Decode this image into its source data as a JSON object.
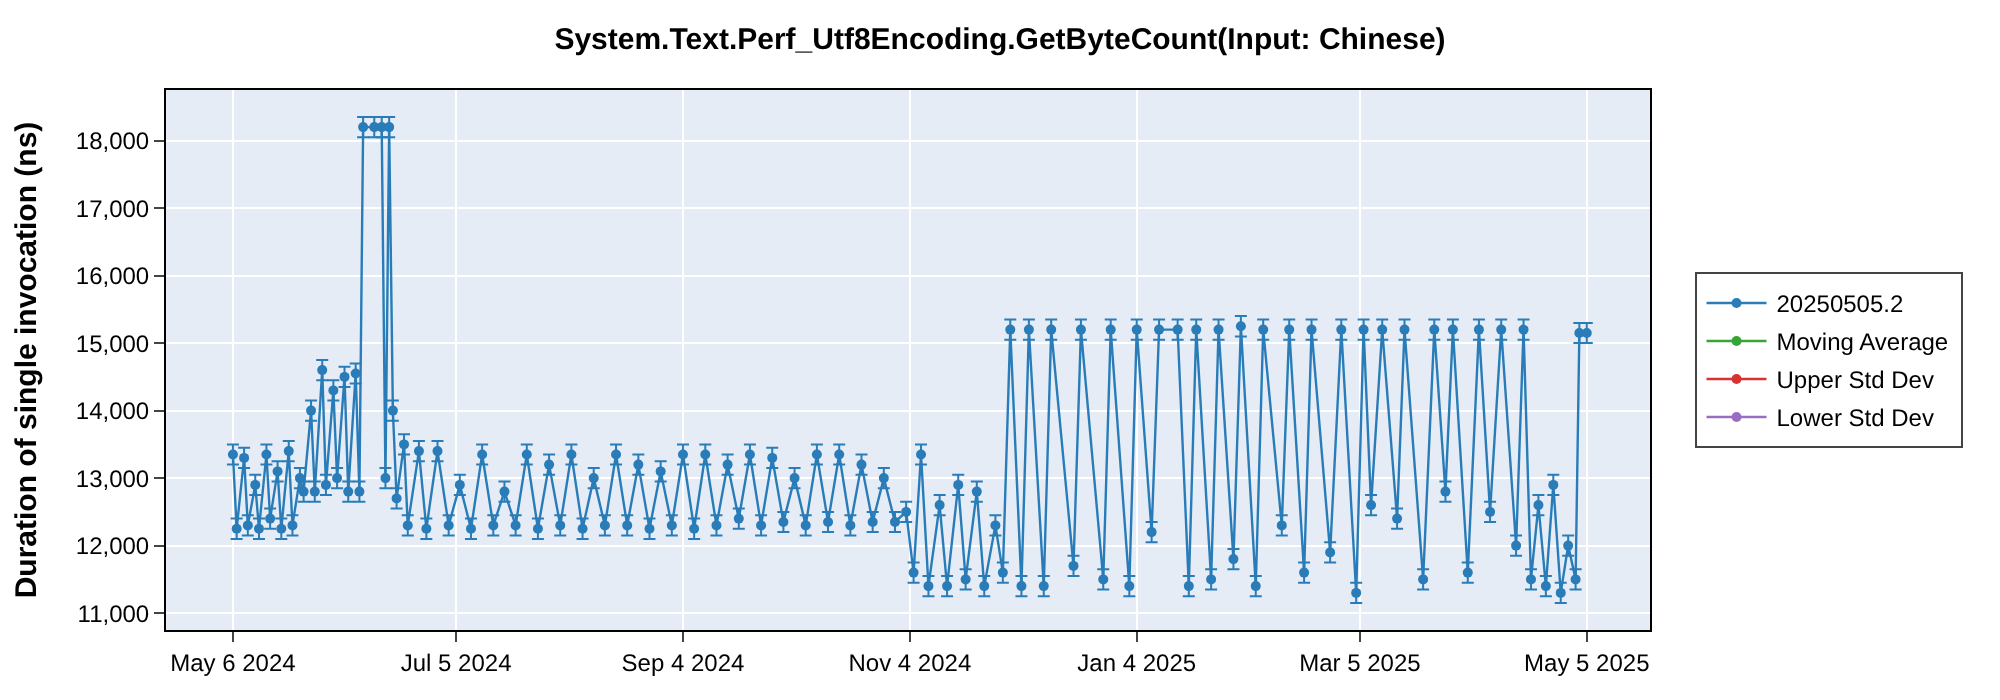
{
  "chart_data": {
    "type": "line",
    "title": "System.Text.Perf_Utf8Encoding.GetByteCount(Input: Chinese)",
    "ylabel": "Duration of single invocation (ns)",
    "x": [
      "2024-05-06",
      "2024-05-07",
      "2024-05-09",
      "2024-05-10",
      "2024-05-12",
      "2024-05-13",
      "2024-05-15",
      "2024-05-16",
      "2024-05-18",
      "2024-05-19",
      "2024-05-21",
      "2024-05-22",
      "2024-05-24",
      "2024-05-25",
      "2024-05-27",
      "2024-05-28",
      "2024-05-30",
      "2024-05-31",
      "2024-06-02",
      "2024-06-03",
      "2024-06-05",
      "2024-06-06",
      "2024-06-08",
      "2024-06-09",
      "2024-06-10",
      "2024-06-13",
      "2024-06-15",
      "2024-06-16",
      "2024-06-17",
      "2024-06-18",
      "2024-06-19",
      "2024-06-21",
      "2024-06-22",
      "2024-06-25",
      "2024-06-27",
      "2024-06-30",
      "2024-07-03",
      "2024-07-06",
      "2024-07-09",
      "2024-07-12",
      "2024-07-15",
      "2024-07-18",
      "2024-07-21",
      "2024-07-24",
      "2024-07-27",
      "2024-07-30",
      "2024-08-02",
      "2024-08-05",
      "2024-08-08",
      "2024-08-11",
      "2024-08-14",
      "2024-08-17",
      "2024-08-20",
      "2024-08-23",
      "2024-08-26",
      "2024-08-29",
      "2024-09-01",
      "2024-09-04",
      "2024-09-07",
      "2024-09-10",
      "2024-09-13",
      "2024-09-16",
      "2024-09-19",
      "2024-09-22",
      "2024-09-25",
      "2024-09-28",
      "2024-10-01",
      "2024-10-04",
      "2024-10-07",
      "2024-10-10",
      "2024-10-13",
      "2024-10-16",
      "2024-10-19",
      "2024-10-22",
      "2024-10-25",
      "2024-10-28",
      "2024-10-31",
      "2024-11-03",
      "2024-11-05",
      "2024-11-07",
      "2024-11-09",
      "2024-11-12",
      "2024-11-14",
      "2024-11-17",
      "2024-11-19",
      "2024-11-22",
      "2024-11-24",
      "2024-11-27",
      "2024-11-29",
      "2024-12-01",
      "2024-12-04",
      "2024-12-06",
      "2024-12-10",
      "2024-12-12",
      "2024-12-18",
      "2024-12-20",
      "2024-12-26",
      "2024-12-28",
      "2025-01-02",
      "2025-01-04",
      "2025-01-08",
      "2025-01-10",
      "2025-01-15",
      "2025-01-18",
      "2025-01-20",
      "2025-01-24",
      "2025-01-26",
      "2025-01-30",
      "2025-02-01",
      "2025-02-05",
      "2025-02-07",
      "2025-02-12",
      "2025-02-14",
      "2025-02-18",
      "2025-02-20",
      "2025-02-25",
      "2025-02-28",
      "2025-03-04",
      "2025-03-06",
      "2025-03-08",
      "2025-03-11",
      "2025-03-15",
      "2025-03-17",
      "2025-03-22",
      "2025-03-25",
      "2025-03-28",
      "2025-03-30",
      "2025-04-03",
      "2025-04-06",
      "2025-04-09",
      "2025-04-12",
      "2025-04-16",
      "2025-04-18",
      "2025-04-20",
      "2025-04-22",
      "2025-04-24",
      "2025-04-26",
      "2025-04-28",
      "2025-04-30",
      "2025-05-02",
      "2025-05-03",
      "2025-05-05"
    ],
    "series": [
      {
        "name": "20250505.2",
        "color": "#1f77b4",
        "values": [
          13350,
          12250,
          13300,
          12300,
          12900,
          12250,
          13350,
          12400,
          13100,
          12250,
          13400,
          12300,
          13000,
          12800,
          14000,
          12800,
          14600,
          12900,
          14300,
          13000,
          14500,
          12800,
          14550,
          12800,
          18200,
          18200,
          18200,
          13000,
          18200,
          14000,
          12700,
          13500,
          12300,
          13400,
          12250,
          13400,
          12300,
          12900,
          12250,
          13350,
          12300,
          12800,
          12300,
          13350,
          12250,
          13200,
          12300,
          13350,
          12250,
          13000,
          12300,
          13350,
          12300,
          13200,
          12250,
          13100,
          12300,
          13350,
          12250,
          13350,
          12300,
          13200,
          12400,
          13350,
          12300,
          13300,
          12350,
          13000,
          12300,
          13350,
          12350,
          13350,
          12300,
          13200,
          12350,
          13000,
          12350,
          12500,
          11600,
          13350,
          11400,
          12600,
          11400,
          12900,
          11500,
          12800,
          11400,
          12300,
          11600,
          15200,
          11400,
          15200,
          11400,
          15200,
          11700,
          15200,
          11500,
          15200,
          11400,
          15200,
          12200,
          15200,
          15200,
          11400,
          15200,
          11500,
          15200,
          11800,
          15250,
          11400,
          15200,
          12300,
          15200,
          11600,
          15200,
          11900,
          15200,
          11300,
          15200,
          12600,
          15200,
          12400,
          15200,
          11500,
          15200,
          12800,
          15200,
          11600,
          15200,
          12500,
          15200,
          12000,
          15200,
          11500,
          12600,
          11400,
          12900,
          11300,
          12000,
          11500,
          15150,
          15150
        ],
        "errors": [
          150,
          150,
          150,
          150,
          150,
          150,
          150,
          150,
          150,
          150,
          150,
          150,
          150,
          150,
          150,
          150,
          150,
          150,
          150,
          150,
          150,
          150,
          150,
          150,
          150,
          150,
          150,
          150,
          150,
          150,
          150,
          150,
          150,
          150,
          150,
          150,
          150,
          150,
          150,
          150,
          150,
          150,
          150,
          150,
          150,
          150,
          150,
          150,
          150,
          150,
          150,
          150,
          150,
          150,
          150,
          150,
          150,
          150,
          150,
          150,
          150,
          150,
          150,
          150,
          150,
          150,
          150,
          150,
          150,
          150,
          150,
          150,
          150,
          150,
          150,
          150,
          150,
          150,
          150,
          150,
          150,
          150,
          150,
          150,
          150,
          150,
          150,
          150,
          150,
          150,
          150,
          150,
          150,
          150,
          150,
          150,
          150,
          150,
          150,
          150,
          150,
          150,
          150,
          150,
          150,
          150,
          150,
          150,
          150,
          150,
          150,
          150,
          150,
          150,
          150,
          150,
          150,
          150,
          150,
          150,
          150,
          150,
          150,
          150,
          150,
          150,
          150,
          150,
          150,
          150,
          150,
          150,
          150,
          150,
          150,
          150,
          150,
          150,
          150,
          150,
          150,
          150
        ]
      },
      {
        "name": "Moving Average",
        "color": "#2ca02c",
        "values": [
          null,
          null,
          null,
          null,
          null,
          null,
          null,
          null,
          null,
          null,
          null,
          null,
          null,
          null,
          null,
          null,
          null,
          null,
          null,
          null,
          null,
          null,
          null,
          null,
          null,
          null,
          null,
          null,
          null,
          null,
          null,
          null,
          null,
          null,
          null,
          null,
          null,
          null,
          null,
          null,
          null,
          null,
          null,
          null,
          null,
          null,
          null,
          null,
          null,
          null,
          null,
          null,
          null,
          null,
          null,
          null,
          null,
          null,
          null,
          null,
          null,
          null,
          null,
          null,
          null,
          null,
          null,
          null,
          null,
          null,
          null,
          null,
          null,
          null,
          null,
          null,
          null,
          null,
          null,
          null,
          null,
          null,
          null,
          null,
          null,
          null,
          null,
          null,
          null,
          null,
          null,
          null,
          null,
          null,
          null,
          null,
          null,
          null,
          null,
          null,
          null,
          null,
          null,
          null,
          null,
          null,
          null,
          null,
          null,
          null,
          null,
          null,
          null,
          null,
          null,
          null,
          null,
          null,
          null,
          null,
          null,
          null,
          null,
          null,
          null,
          null,
          null,
          null,
          null,
          null,
          null,
          null,
          null,
          null,
          null,
          null,
          null,
          null,
          null,
          null,
          null,
          null
        ]
      },
      {
        "name": "Upper Std Dev",
        "color": "#d62728",
        "values": [
          null,
          null,
          null,
          null,
          null,
          null,
          null,
          null,
          null,
          null,
          null,
          null,
          null,
          null,
          null,
          null,
          null,
          null,
          null,
          null,
          null,
          null,
          null,
          null,
          null,
          null,
          null,
          null,
          null,
          null,
          null,
          null,
          null,
          null,
          null,
          null,
          null,
          null,
          null,
          null,
          null,
          null,
          null,
          null,
          null,
          null,
          null,
          null,
          null,
          null,
          null,
          null,
          null,
          null,
          null,
          null,
          null,
          null,
          null,
          null,
          null,
          null,
          null,
          null,
          null,
          null,
          null,
          null,
          null,
          null,
          null,
          null,
          null,
          null,
          null,
          null,
          null,
          null,
          null,
          null,
          null,
          null,
          null,
          null,
          null,
          null,
          null,
          null,
          null,
          null,
          null,
          null,
          null,
          null,
          null,
          null,
          null,
          null,
          null,
          null,
          null,
          null,
          null,
          null,
          null,
          null,
          null,
          null,
          null,
          null,
          null,
          null,
          null,
          null,
          null,
          null,
          null,
          null,
          null,
          null,
          null,
          null,
          null,
          null,
          null,
          null,
          null,
          null,
          null,
          null,
          null,
          null,
          null,
          null,
          null,
          null,
          null,
          null,
          null,
          null,
          null,
          null
        ]
      },
      {
        "name": "Lower Std Dev",
        "color": "#9467bd",
        "values": [
          null,
          null,
          null,
          null,
          null,
          null,
          null,
          null,
          null,
          null,
          null,
          null,
          null,
          null,
          null,
          null,
          null,
          null,
          null,
          null,
          null,
          null,
          null,
          null,
          null,
          null,
          null,
          null,
          null,
          null,
          null,
          null,
          null,
          null,
          null,
          null,
          null,
          null,
          null,
          null,
          null,
          null,
          null,
          null,
          null,
          null,
          null,
          null,
          null,
          null,
          null,
          null,
          null,
          null,
          null,
          null,
          null,
          null,
          null,
          null,
          null,
          null,
          null,
          null,
          null,
          null,
          null,
          null,
          null,
          null,
          null,
          null,
          null,
          null,
          null,
          null,
          null,
          null,
          null,
          null,
          null,
          null,
          null,
          null,
          null,
          null,
          null,
          null,
          null,
          null,
          null,
          null,
          null,
          null,
          null,
          null,
          null,
          null,
          null,
          null,
          null,
          null,
          null,
          null,
          null,
          null,
          null,
          null,
          null,
          null,
          null,
          null,
          null,
          null,
          null,
          null,
          null,
          null,
          null,
          null,
          null,
          null,
          null,
          null,
          null,
          null,
          null,
          null,
          null,
          null,
          null,
          null,
          null,
          null,
          null,
          null,
          null,
          null,
          null,
          null,
          null,
          null
        ]
      }
    ],
    "xlim": [
      "2024-04-18",
      "2025-05-22"
    ],
    "xticks": [
      {
        "value": "2024-05-06",
        "label": "May 6 2024"
      },
      {
        "value": "2024-07-05",
        "label": "Jul 5 2024"
      },
      {
        "value": "2024-09-04",
        "label": "Sep 4 2024"
      },
      {
        "value": "2024-11-04",
        "label": "Nov 4 2024"
      },
      {
        "value": "2025-01-04",
        "label": "Jan 4 2025"
      },
      {
        "value": "2025-03-05",
        "label": "Mar 5 2025"
      },
      {
        "value": "2025-05-05",
        "label": "May 5 2025"
      }
    ],
    "ylim": [
      10750,
      18750
    ],
    "yticks": [
      {
        "value": 11000,
        "label": "11,000"
      },
      {
        "value": 12000,
        "label": "12,000"
      },
      {
        "value": 13000,
        "label": "13,000"
      },
      {
        "value": 14000,
        "label": "14,000"
      },
      {
        "value": 15000,
        "label": "15,000"
      },
      {
        "value": 16000,
        "label": "16,000"
      },
      {
        "value": 17000,
        "label": "17,000"
      },
      {
        "value": 18000,
        "label": "18,000"
      }
    ],
    "grid": true,
    "legend": "right",
    "marker": "circle",
    "line_style": "solid"
  }
}
